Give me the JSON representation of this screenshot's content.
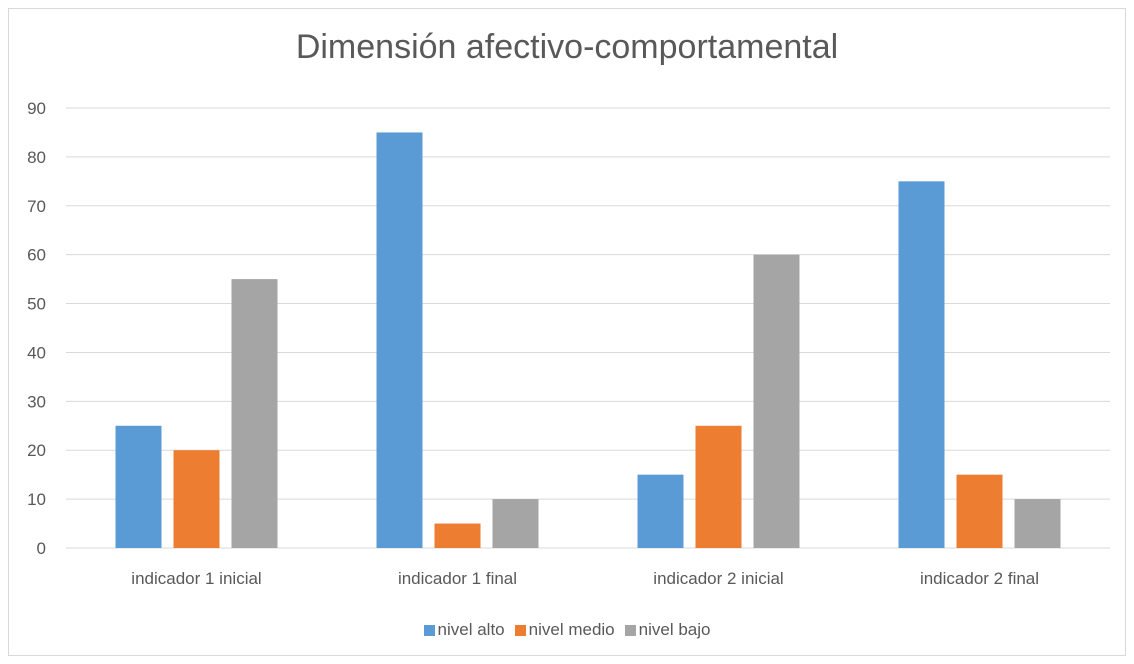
{
  "chart_data": {
    "type": "bar",
    "title": "Dimensión afectivo-comportamental",
    "xlabel": "",
    "ylabel": "",
    "categories": [
      "indicador 1 inicial",
      "indicador 1 final",
      "indicador 2 inicial",
      "indicador 2 final"
    ],
    "series": [
      {
        "name": "nivel alto",
        "color": "#5b9bd5",
        "values": [
          25,
          85,
          15,
          75
        ]
      },
      {
        "name": "nivel medio",
        "color": "#ed7d31",
        "values": [
          20,
          5,
          25,
          15
        ]
      },
      {
        "name": "nivel bajo",
        "color": "#a5a5a5",
        "values": [
          55,
          10,
          60,
          10
        ]
      }
    ],
    "ylim": [
      0,
      90
    ],
    "yticks": [
      0,
      10,
      20,
      30,
      40,
      50,
      60,
      70,
      80,
      90
    ],
    "grid": true,
    "legend_position": "bottom"
  }
}
